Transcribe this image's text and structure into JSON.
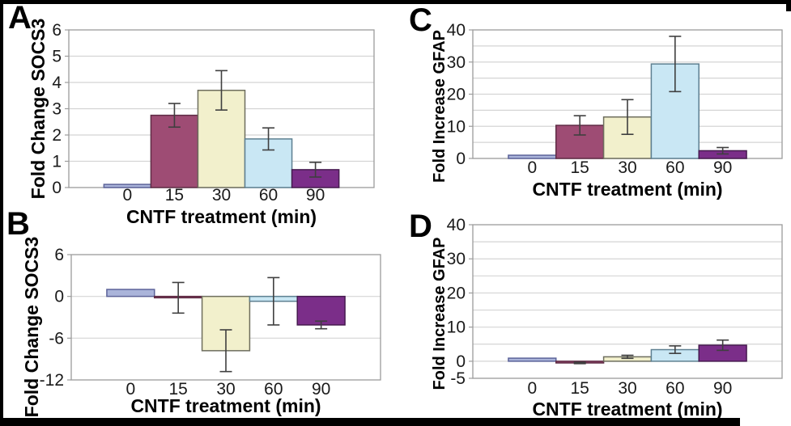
{
  "figure": {
    "background": "#ffffff",
    "border_color": "#000000"
  },
  "styles": {
    "gridline": "#d4d4d4",
    "plot_border": "#9c9c9c",
    "error_color": "#3f3f3f",
    "tick_text": "#1a1a1a",
    "label_text": "#000000"
  },
  "bar_colors": [
    {
      "fill": "#aab4da",
      "stroke": "#5c6399"
    },
    {
      "fill": "#9e4c74",
      "stroke": "#5f2c45"
    },
    {
      "fill": "#f2f0cc",
      "stroke": "#6e6e5e"
    },
    {
      "fill": "#c9e7f4",
      "stroke": "#5e8091"
    },
    {
      "fill": "#7b2e89",
      "stroke": "#471b50"
    }
  ],
  "chart_data": [
    {
      "panel": "A",
      "type": "bar",
      "title": "",
      "xlabel": "CNTF treatment (min)",
      "ylabel": "Fold Change SOCS3",
      "categories": [
        "0",
        "15",
        "30",
        "60",
        "90"
      ],
      "values": [
        0.12,
        2.75,
        3.7,
        1.85,
        0.68
      ],
      "errors": [
        null,
        0.45,
        0.75,
        0.42,
        0.28
      ],
      "ylim": [
        0,
        6
      ],
      "yticks": [
        0,
        1,
        2,
        3,
        4,
        5,
        6
      ],
      "grid_step": 1,
      "grid": true,
      "legend": "none"
    },
    {
      "panel": "B",
      "type": "bar",
      "title": "",
      "xlabel": "CNTF treatment (min)",
      "ylabel": "Fold Change SOCS3",
      "categories": [
        "0",
        "15",
        "30",
        "60",
        "90"
      ],
      "values": [
        1.0,
        -0.2,
        -7.8,
        -0.7,
        -4.1
      ],
      "errors": [
        null,
        2.2,
        3.0,
        3.4,
        0.55
      ],
      "ylim": [
        -12,
        6
      ],
      "yticks": [
        -12,
        -6,
        0,
        6
      ],
      "grid_step": 6,
      "grid": true,
      "legend": "none"
    },
    {
      "panel": "C",
      "type": "bar",
      "title": "",
      "xlabel": "CNTF treatment (min)",
      "ylabel": "Fold Increase GFAP",
      "categories": [
        "0",
        "15",
        "30",
        "60",
        "90"
      ],
      "values": [
        1.0,
        10.3,
        12.9,
        29.4,
        2.4
      ],
      "errors": [
        null,
        3.0,
        5.4,
        8.6,
        1.0
      ],
      "ylim": [
        0,
        40
      ],
      "yticks": [
        0,
        10,
        20,
        30,
        40
      ],
      "grid_step": 5,
      "grid": true,
      "legend": "none"
    },
    {
      "panel": "D",
      "type": "bar",
      "title": "",
      "xlabel": "CNTF treatment (min)",
      "ylabel": "Fold Increase GFAP",
      "categories": [
        "0",
        "15",
        "30",
        "60",
        "90"
      ],
      "values": [
        0.9,
        -0.5,
        1.3,
        3.4,
        4.7
      ],
      "errors": [
        null,
        0.2,
        0.45,
        1.1,
        1.5
      ],
      "ylim": [
        -5,
        40
      ],
      "yticks": [
        -5,
        0,
        10,
        20,
        30,
        40
      ],
      "grid_step": 5,
      "grid": true,
      "legend": "none"
    }
  ]
}
